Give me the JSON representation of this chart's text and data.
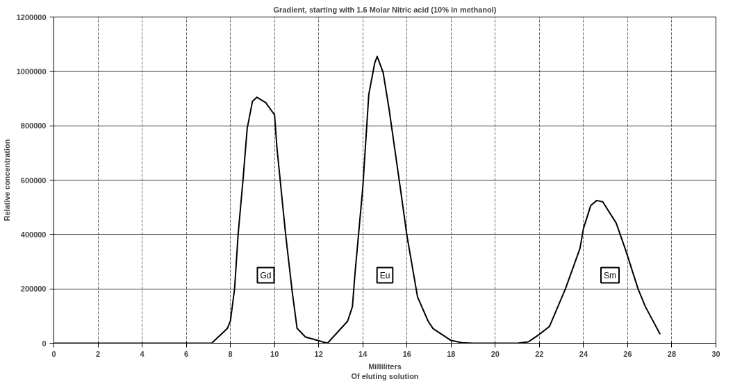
{
  "chart_data": {
    "type": "line",
    "title": "Gradient, starting with 1.6 Molar Nitric acid (10% in methanol)",
    "xlabel": "Milliliters\nOf eluting solution",
    "ylabel": "Relative concentration",
    "x": [
      0,
      7.15,
      7.86,
      8.0,
      8.19,
      8.35,
      8.57,
      8.76,
      9.0,
      9.2,
      9.6,
      10.0,
      10.11,
      10.5,
      10.8,
      11.02,
      11.4,
      12.4,
      13.31,
      13.53,
      13.64,
      14.0,
      14.27,
      14.54,
      14.65,
      14.92,
      15.19,
      15.74,
      16.0,
      16.48,
      16.96,
      17.18,
      18.0,
      18.5,
      19.0,
      21.0,
      21.5,
      21.97,
      22.46,
      23.18,
      23.84,
      24.0,
      24.33,
      24.6,
      24.87,
      25.48,
      25.92,
      26.47,
      26.8,
      27.47
    ],
    "series": [
      {
        "color": "#000000",
        "values": [
          0,
          0,
          54000,
          82000,
          200000,
          400000,
          600000,
          790000,
          890000,
          905000,
          885000,
          840000,
          718000,
          402000,
          190000,
          55000,
          23000,
          0,
          81000,
          135000,
          251000,
          574000,
          915000,
          1031000,
          1055000,
          996000,
          861000,
          547000,
          395000,
          170000,
          81000,
          54000,
          10000,
          2000,
          0,
          0,
          5000,
          31000,
          62000,
          200000,
          349000,
          423000,
          507000,
          525000,
          520000,
          442000,
          340000,
          200000,
          135000,
          33000
        ]
      }
    ],
    "annotations": [
      {
        "text": "Gd",
        "x": 9.6,
        "y": 250000
      },
      {
        "text": "Eu",
        "x": 15.0,
        "y": 250000
      },
      {
        "text": "Sm",
        "x": 25.2,
        "y": 250000
      }
    ],
    "xlim": [
      0,
      30
    ],
    "xticks": [
      0,
      2,
      4,
      6,
      8,
      10,
      12,
      14,
      16,
      18,
      20,
      22,
      24,
      26,
      28,
      30
    ],
    "ylim": [
      0,
      1200000
    ],
    "yticks": [
      0,
      200000,
      400000,
      600000,
      800000,
      1000000,
      1200000
    ],
    "grid": true,
    "marker": "none",
    "line_style": "solid"
  }
}
